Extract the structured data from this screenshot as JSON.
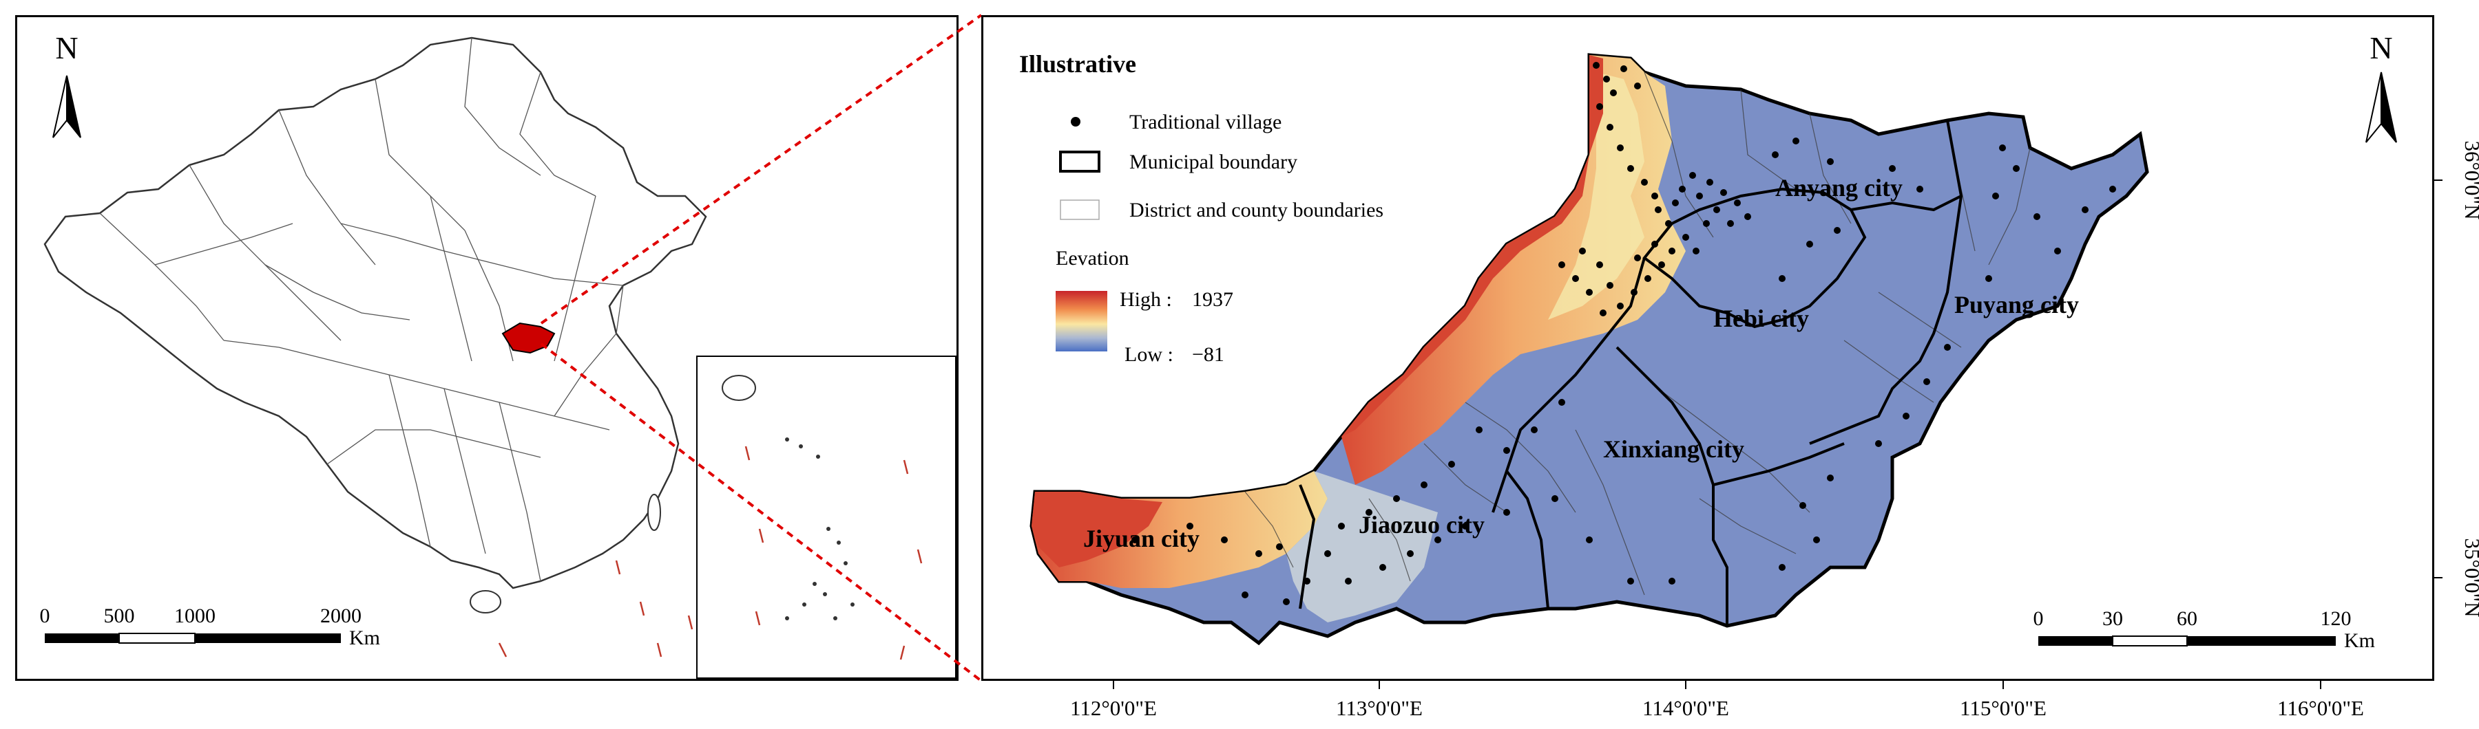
{
  "overview": {
    "north_label": "N",
    "scale": {
      "ticks": [
        "0",
        "500",
        "1000",
        "2000"
      ],
      "unit": "Km"
    }
  },
  "detail": {
    "north_label": "N",
    "legend": {
      "title": "Illustrative",
      "village_label": "Traditional village",
      "municipal_label": "Municipal boundary",
      "district_label": "District and county boundaries",
      "elevation_title": "Eevation",
      "high_label": "High :",
      "high_value": "1937",
      "low_label": "Low :",
      "low_value": "−81",
      "gradient_colors": [
        "#c8242a",
        "#f08a4b",
        "#fbe7a2",
        "#a9b7d2",
        "#4a6fc4"
      ]
    },
    "cities": [
      {
        "id": "anyang",
        "name": "Anyang city"
      },
      {
        "id": "hebi",
        "name": "Hebi city"
      },
      {
        "id": "puyang",
        "name": "Puyang city"
      },
      {
        "id": "xinxiang",
        "name": "Xinxiang city"
      },
      {
        "id": "jiaozuo",
        "name": "Jiaozuo city"
      },
      {
        "id": "jiyuan",
        "name": "Jiyuan city"
      }
    ],
    "scale": {
      "ticks": [
        "0",
        "30",
        "60",
        "120"
      ],
      "unit": "Km"
    },
    "x_axis_labels": [
      "112°0'0\"E",
      "113°0'0\"E",
      "114°0'0\"E",
      "115°0'0\"E",
      "116°0'0\"E"
    ],
    "y_axis_labels": [
      "36°0'0\"N",
      "35°0'0\"N"
    ]
  },
  "colors": {
    "highlight_region": "#cc0000",
    "leader_line": "#e00000",
    "lowland": "#7b8fc6",
    "upland": "#f2d98d",
    "mountain": "#d94b35",
    "boundary": "#000000"
  }
}
